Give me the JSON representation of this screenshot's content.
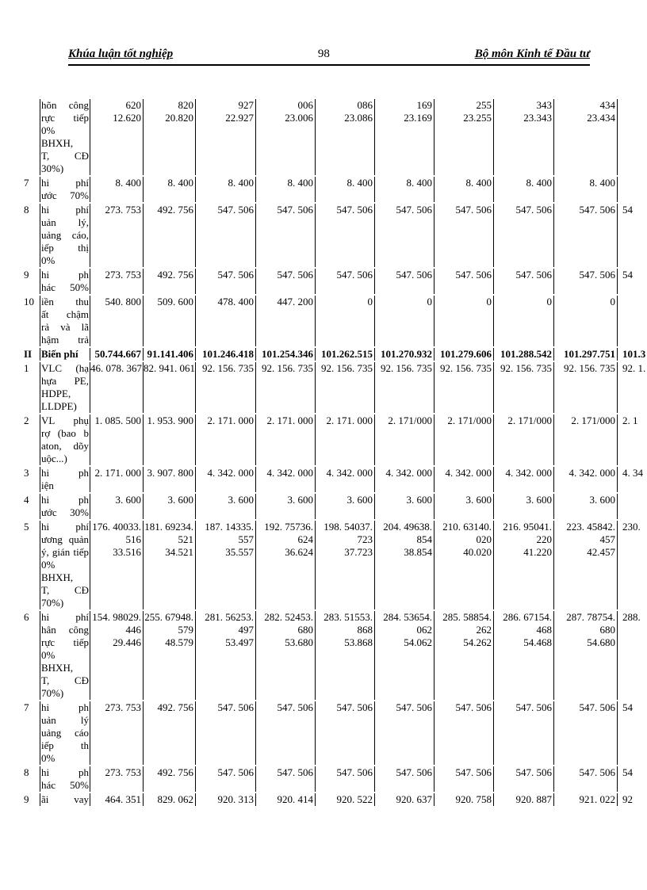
{
  "header": {
    "thesis_title": "Khúa luận tốt nghiệp",
    "page_number": "98",
    "department": "Bộ môn Kinh tế Đầu tư"
  },
  "table": {
    "rows": [
      {
        "num": "",
        "bold": false,
        "label": [
          "hõn công",
          "rực tiếp",
          "0%",
          "BHXH,",
          "T, CĐ",
          "30%)"
        ],
        "cells": [
          [
            "620",
            "12.620"
          ],
          [
            "820",
            "20.820"
          ],
          [
            "927",
            "22.927"
          ],
          [
            "006",
            "23.006"
          ],
          [
            "086",
            "23.086"
          ],
          [
            "169",
            "23.169"
          ],
          [
            "255",
            "23.255"
          ],
          [
            "343",
            "23.343"
          ],
          [
            "434",
            "23.434"
          ],
          [
            ""
          ]
        ]
      },
      {
        "num": "7",
        "bold": false,
        "label": [
          "hi phí",
          "ước 70%"
        ],
        "cells": [
          [
            "8. 400"
          ],
          [
            "8. 400"
          ],
          [
            "8. 400"
          ],
          [
            "8. 400"
          ],
          [
            "8. 400"
          ],
          [
            "8. 400"
          ],
          [
            "8. 400"
          ],
          [
            "8. 400"
          ],
          [
            "8. 400"
          ],
          [
            ""
          ]
        ]
      },
      {
        "num": "8",
        "bold": false,
        "label": [
          "hi phí",
          "uản lý,",
          "uảng cáo,",
          "iếp thị",
          "0%"
        ],
        "cells": [
          [
            "273. 753"
          ],
          [
            "492. 756"
          ],
          [
            "547. 506"
          ],
          [
            "547. 506"
          ],
          [
            "547. 506"
          ],
          [
            "547. 506"
          ],
          [
            "547. 506"
          ],
          [
            "547. 506"
          ],
          [
            "547. 506"
          ],
          [
            "54"
          ]
        ]
      },
      {
        "num": "9",
        "bold": false,
        "label": [
          "hi ph",
          "hác 50%"
        ],
        "cells": [
          [
            "273. 753"
          ],
          [
            "492. 756"
          ],
          [
            "547. 506"
          ],
          [
            "547. 506"
          ],
          [
            "547. 506"
          ],
          [
            "547. 506"
          ],
          [
            "547. 506"
          ],
          [
            "547. 506"
          ],
          [
            "547. 506"
          ],
          [
            "54"
          ]
        ]
      },
      {
        "num": "10",
        "bold": false,
        "label": [
          "iền thu",
          "ất chậm",
          "rả và lã",
          "hậm trả"
        ],
        "cells": [
          [
            "540. 800"
          ],
          [
            "509. 600"
          ],
          [
            "478. 400"
          ],
          [
            "447. 200"
          ],
          [
            "0"
          ],
          [
            "0"
          ],
          [
            "0"
          ],
          [
            "0"
          ],
          [
            "0"
          ],
          [
            ""
          ]
        ]
      },
      {
        "num": "II",
        "bold": true,
        "label": [
          "Biến phí"
        ],
        "cells": [
          [
            "50.744.667"
          ],
          [
            "91.141.406"
          ],
          [
            "101.246.418"
          ],
          [
            "101.254.346"
          ],
          [
            "101.262.515"
          ],
          [
            "101.270.932"
          ],
          [
            "101.279.606"
          ],
          [
            "101.288.542"
          ],
          [
            "101.297.751"
          ],
          [
            "101.3"
          ]
        ]
      },
      {
        "num": "1",
        "bold": false,
        "label": [
          "VLC (hạ",
          "hựa PE,",
          "HDPE,",
          "LLDPE)"
        ],
        "cells": [
          [
            "46. 078. 367"
          ],
          [
            "82. 941. 061"
          ],
          [
            "92. 156. 735"
          ],
          [
            "92. 156. 735"
          ],
          [
            "92. 156. 735"
          ],
          [
            "92. 156. 735"
          ],
          [
            "92. 156. 735"
          ],
          [
            "92. 156. 735"
          ],
          [
            "92. 156. 735"
          ],
          [
            "92. 1."
          ]
        ]
      },
      {
        "num": "2",
        "bold": false,
        "label": [
          "VL phụ",
          "rợ (bao b",
          "aton, dõy",
          "uộc...)"
        ],
        "cells": [
          [
            "1. 085. 500"
          ],
          [
            "1. 953. 900"
          ],
          [
            "2. 171. 000"
          ],
          [
            "2. 171. 000"
          ],
          [
            "2. 171. 000"
          ],
          [
            "2. 171/000"
          ],
          [
            "2. 171/000"
          ],
          [
            "2. 171/000"
          ],
          [
            "2. 171/000"
          ],
          [
            "2. 1"
          ]
        ]
      },
      {
        "num": "3",
        "bold": false,
        "label": [
          "hi ph",
          "iện"
        ],
        "cells": [
          [
            "2. 171. 000"
          ],
          [
            "3. 907. 800"
          ],
          [
            "4. 342. 000"
          ],
          [
            "4. 342. 000"
          ],
          [
            "4. 342. 000"
          ],
          [
            "4. 342. 000"
          ],
          [
            "4. 342. 000"
          ],
          [
            "4. 342. 000"
          ],
          [
            "4. 342. 000"
          ],
          [
            "4. 34"
          ]
        ]
      },
      {
        "num": "4",
        "bold": false,
        "label": [
          "hi ph",
          "ước 30%"
        ],
        "cells": [
          [
            "3. 600"
          ],
          [
            "3. 600"
          ],
          [
            "3. 600"
          ],
          [
            "3. 600"
          ],
          [
            "3. 600"
          ],
          [
            "3. 600"
          ],
          [
            "3. 600"
          ],
          [
            "3. 600"
          ],
          [
            "3. 600"
          ],
          [
            ""
          ]
        ]
      },
      {
        "num": "5",
        "bold": false,
        "label": [
          "hi phí",
          "ương quản",
          "ý, gián tiếp",
          "0%",
          "BHXH,",
          "T, CĐ",
          "70%)"
        ],
        "cells": [
          [
            "176. 40033.",
            "516",
            "33.516"
          ],
          [
            "181. 69234.",
            "521",
            "34.521"
          ],
          [
            "187. 14335.",
            "557",
            "35.557"
          ],
          [
            "192. 75736.",
            "624",
            "36.624"
          ],
          [
            "198. 54037.",
            "723",
            "37.723"
          ],
          [
            "204. 49638.",
            "854",
            "38.854"
          ],
          [
            "210. 63140.",
            "020",
            "40.020"
          ],
          [
            "216. 95041.",
            "220",
            "41.220"
          ],
          [
            "223. 45842.",
            "457",
            "42.457"
          ],
          [
            "230."
          ]
        ]
      },
      {
        "num": "6",
        "bold": false,
        "label": [
          "hi phí",
          "hân công",
          "rực tiếp",
          "0%",
          "BHXH,",
          "T, CĐ",
          "70%)"
        ],
        "cells": [
          [
            "154. 98029.",
            "446",
            "29.446"
          ],
          [
            "255. 67948.",
            "579",
            "48.579"
          ],
          [
            "281. 56253.",
            "497",
            "53.497"
          ],
          [
            "282. 52453.",
            "680",
            "53.680"
          ],
          [
            "283. 51553.",
            "868",
            "53.868"
          ],
          [
            "284. 53654.",
            "062",
            "54.062"
          ],
          [
            "285. 58854.",
            "262",
            "54.262"
          ],
          [
            "286. 67154.",
            "468",
            "54.468"
          ],
          [
            "287. 78754.",
            "680",
            "54.680"
          ],
          [
            "288."
          ]
        ]
      },
      {
        "num": "7",
        "bold": false,
        "label": [
          "hi ph",
          "uản lý",
          "uảng cáo",
          "iếp th",
          "0%"
        ],
        "cells": [
          [
            "273. 753"
          ],
          [
            "492. 756"
          ],
          [
            "547. 506"
          ],
          [
            "547. 506"
          ],
          [
            "547. 506"
          ],
          [
            "547. 506"
          ],
          [
            "547. 506"
          ],
          [
            "547. 506"
          ],
          [
            "547. 506"
          ],
          [
            "54"
          ]
        ]
      },
      {
        "num": "8",
        "bold": false,
        "label": [
          "hi ph",
          "hác 50%"
        ],
        "cells": [
          [
            "273. 753"
          ],
          [
            "492. 756"
          ],
          [
            "547. 506"
          ],
          [
            "547. 506"
          ],
          [
            "547. 506"
          ],
          [
            "547. 506"
          ],
          [
            "547. 506"
          ],
          [
            "547. 506"
          ],
          [
            "547. 506"
          ],
          [
            "54"
          ]
        ]
      },
      {
        "num": "9",
        "bold": false,
        "label": [
          "ãi vay"
        ],
        "cells": [
          [
            "464. 351"
          ],
          [
            "829. 062"
          ],
          [
            "920. 313"
          ],
          [
            "920. 414"
          ],
          [
            "920. 522"
          ],
          [
            "920. 637"
          ],
          [
            "920. 758"
          ],
          [
            "920. 887"
          ],
          [
            "921. 022"
          ],
          [
            "92"
          ]
        ]
      }
    ]
  }
}
